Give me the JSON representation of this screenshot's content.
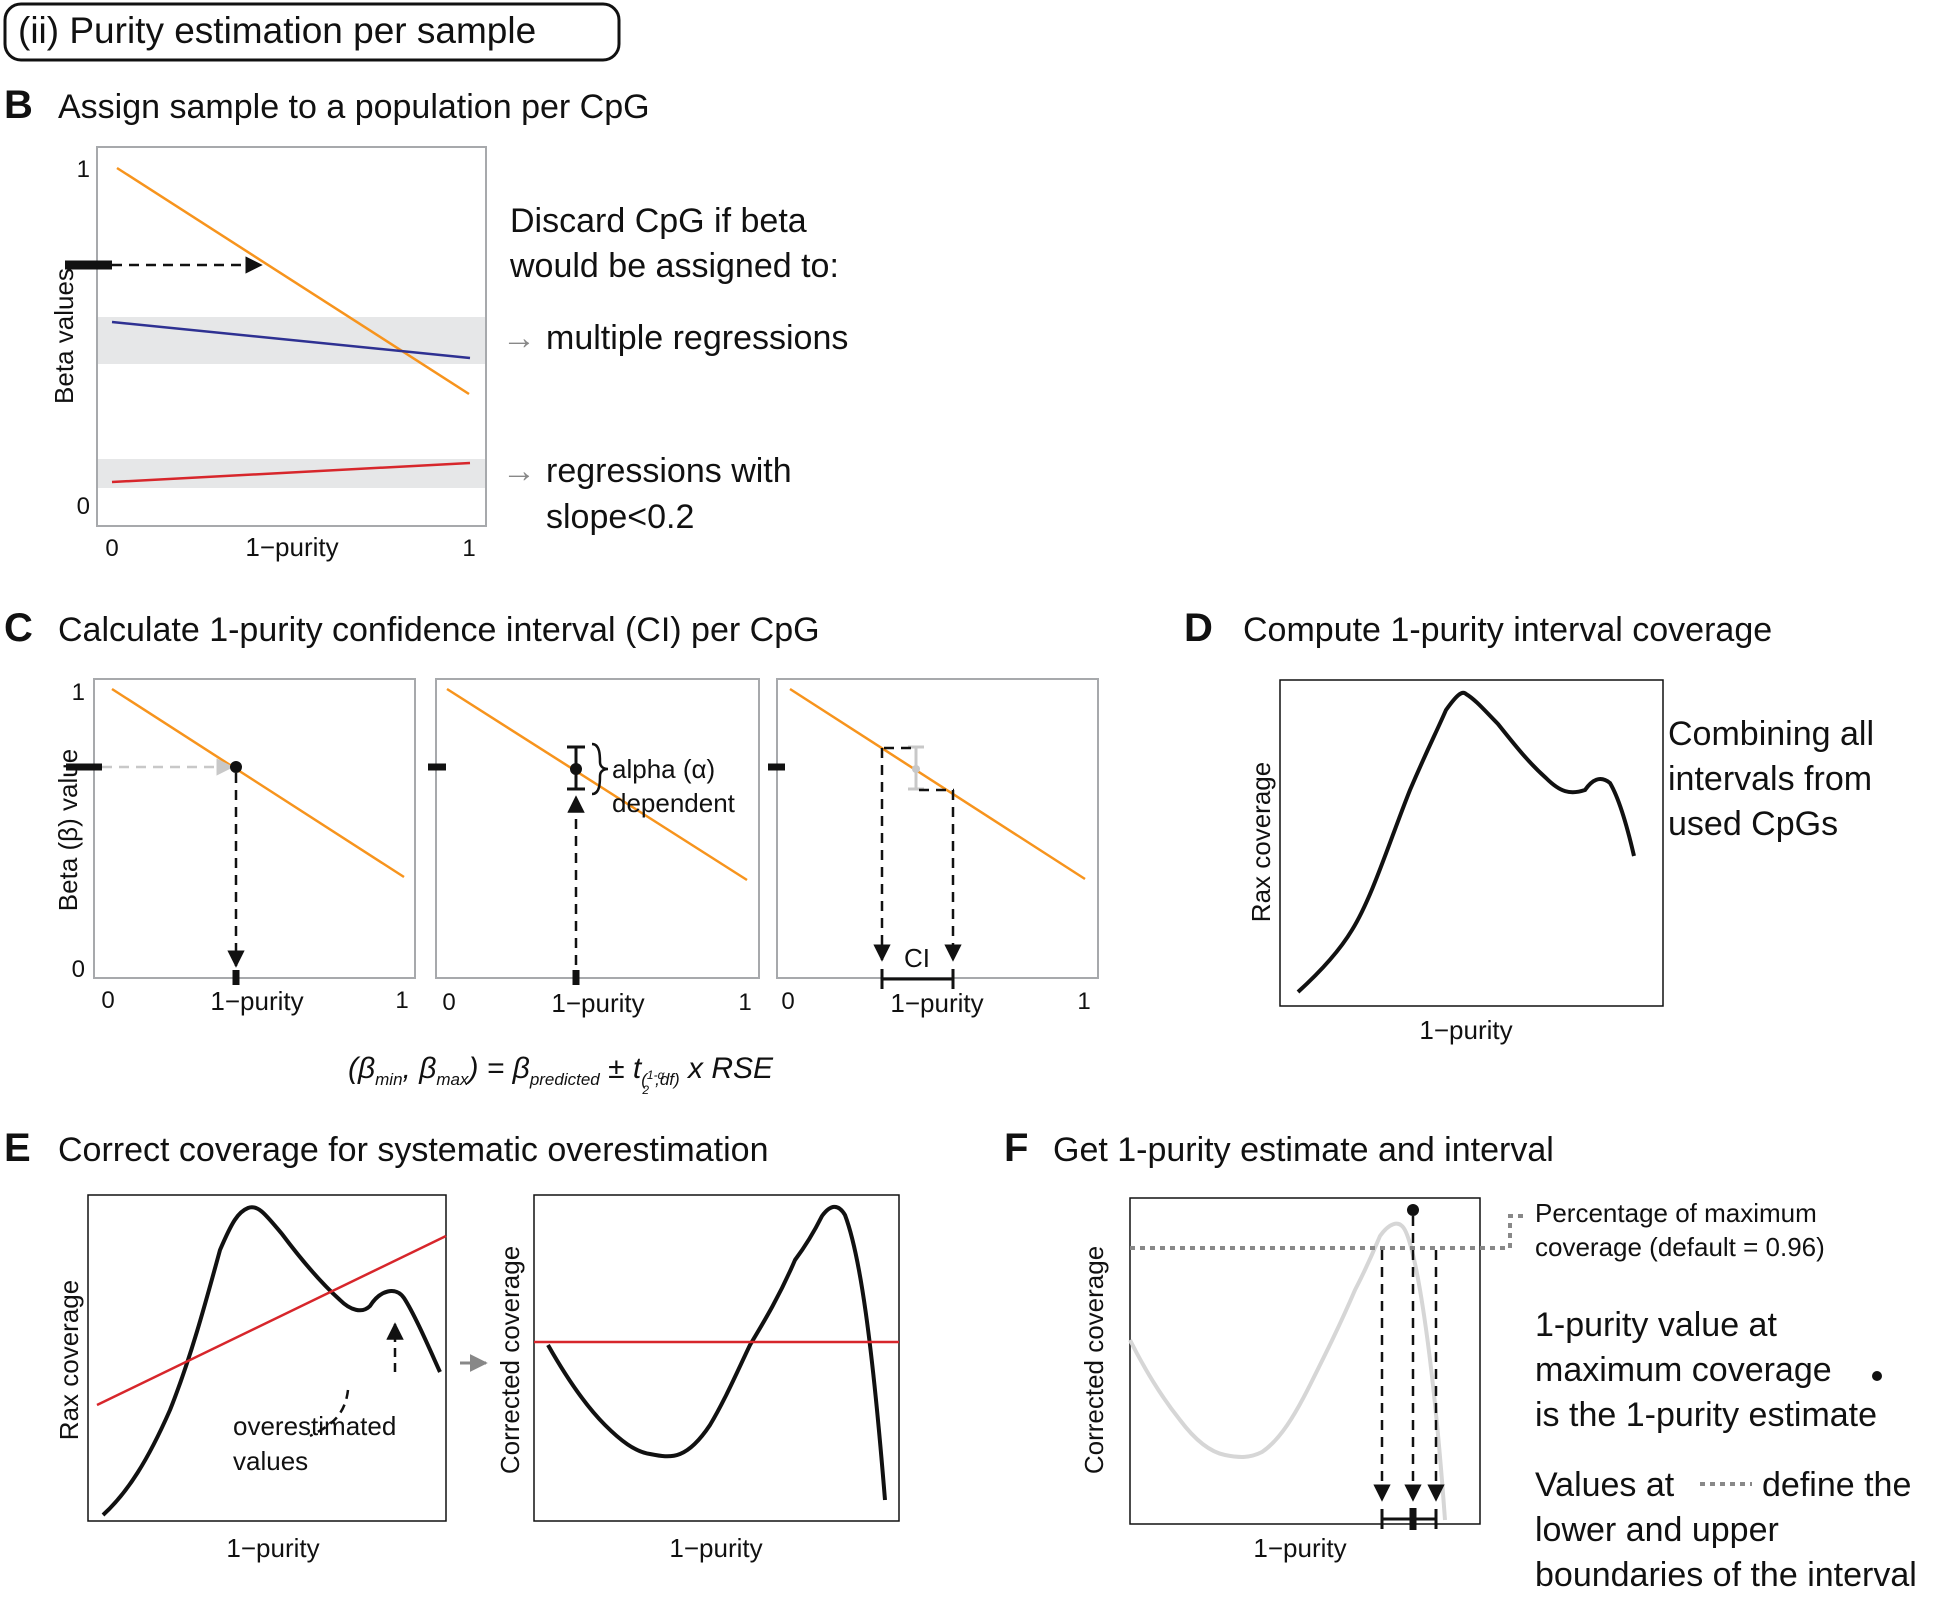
{
  "header": {
    "title": "(ii) Purity estimation per sample"
  },
  "colors": {
    "orange": "#f7941d",
    "blue": "#2e3192",
    "red": "#d7262b",
    "band": "#e6e7e8",
    "frame": "#a7a9ac",
    "black": "#111111",
    "grey": "#888888",
    "light_curve": "#d6d6d6",
    "ci_bar": "#c8c8c8"
  },
  "panel_b": {
    "letter": "B",
    "title": "Assign sample to a population per CpG",
    "ylabel": "Beta values",
    "xlabel": "1−purity",
    "x_ticks": [
      "0",
      "1"
    ],
    "y_ticks": [
      "1",
      "0"
    ],
    "note_line1": "Discard CpG if beta",
    "note_line2": "would be assigned to:",
    "arrow_glyph": "→",
    "item1": "multiple regressions",
    "item2_line1": "regressions with",
    "item2_line2": "slope<0.2"
  },
  "panel_c": {
    "letter": "C",
    "title": "Calculate 1-purity confidence interval (CI) per CpG",
    "ylabel": "Beta (β) value",
    "xlabel": "1−purity",
    "x_ticks": [
      "0",
      "1"
    ],
    "y_ticks": [
      "1",
      "0"
    ],
    "alpha_line1": "alpha (α)",
    "alpha_line2": "dependent",
    "ci_label": "CI",
    "formula": {
      "open": "(β",
      "min_sub": "min",
      "comma": ", β",
      "max_sub": "max",
      "eq": ") = β",
      "pred_sub": "predicted",
      "pm": " ± t",
      "frac_num": "1-α",
      "frac_den": "2",
      "df_sub": ",df",
      "tail": " x RSE"
    }
  },
  "panel_d": {
    "letter": "D",
    "title": "Compute 1-purity interval coverage",
    "ylabel": "Rax coverage",
    "xlabel": "1−purity",
    "note_lines": [
      "Combining all",
      "intervals from",
      "used CpGs"
    ]
  },
  "panel_e": {
    "letter": "E",
    "title": "Correct coverage for systematic overestimation",
    "ylabel_left": "Rax coverage",
    "ylabel_right": "Corrected coverage",
    "xlabel": "1−purity",
    "annot_line1": "overestimated",
    "annot_line2": "values"
  },
  "panel_f": {
    "letter": "F",
    "title": "Get 1-purity estimate and interval",
    "ylabel": "Corrected coverage",
    "xlabel": "1−purity",
    "pct_line1": "Percentage of maximum",
    "pct_line2": "coverage (default = 0.96)",
    "est_lines": [
      "1-purity value at",
      "maximum coverage",
      "is the 1-purity estimate"
    ],
    "val_word": "Values at",
    "val_rest": "define the",
    "val_lines": [
      "lower and upper",
      "boundaries of the interval"
    ]
  }
}
